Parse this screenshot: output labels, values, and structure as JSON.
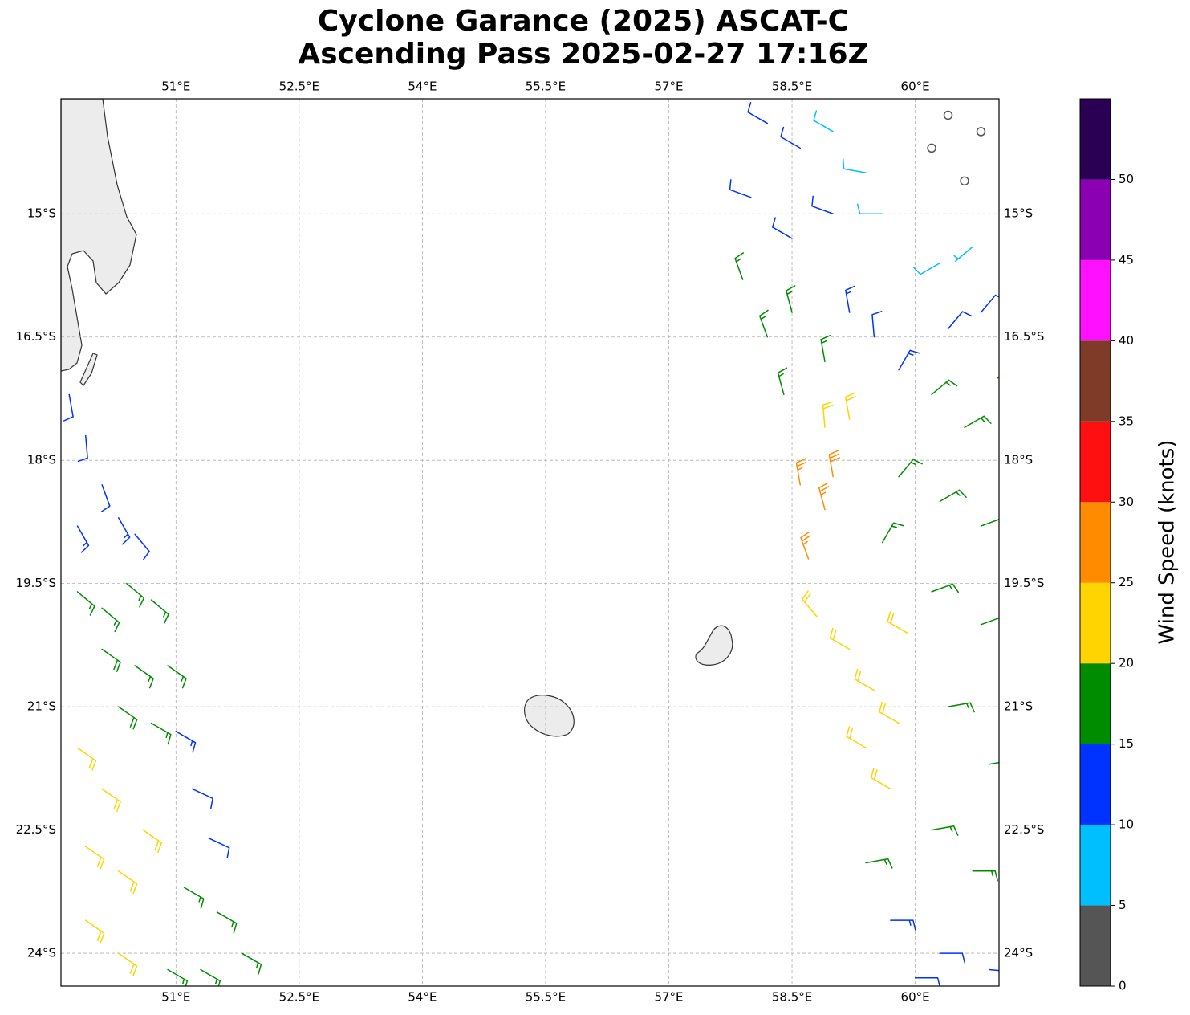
{
  "chart_data": {
    "type": "barb",
    "title": [
      "Cyclone Garance (2025) ASCAT-C",
      "Ascending Pass 2025-02-27 17:16Z"
    ],
    "xlim": [
      49.6,
      61.02
    ],
    "ylim": [
      -24.4,
      -13.6
    ],
    "xticks": [
      {
        "value": 51,
        "label": "51°E"
      },
      {
        "value": 52.5,
        "label": "52.5°E"
      },
      {
        "value": 54,
        "label": "54°E"
      },
      {
        "value": 55.5,
        "label": "55.5°E"
      },
      {
        "value": 57,
        "label": "57°E"
      },
      {
        "value": 58.5,
        "label": "58.5°E"
      },
      {
        "value": 60,
        "label": "60°E"
      }
    ],
    "yticks": [
      {
        "value": -15,
        "label": "15°S"
      },
      {
        "value": -16.5,
        "label": "16.5°S"
      },
      {
        "value": -18,
        "label": "18°S"
      },
      {
        "value": -19.5,
        "label": "19.5°S"
      },
      {
        "value": -21,
        "label": "21°S"
      },
      {
        "value": -22.5,
        "label": "22.5°S"
      },
      {
        "value": -24,
        "label": "24°S"
      }
    ],
    "grid": true,
    "colorbar": {
      "label": "Wind Speed (knots)",
      "levels": [
        0,
        5,
        10,
        15,
        20,
        25,
        30,
        35,
        40,
        45,
        50,
        55
      ],
      "colors": [
        "#555555",
        "#00bfff",
        "#0033ff",
        "#008c00",
        "#ffd400",
        "#ff8c00",
        "#ff1010",
        "#7f3a28",
        "#ff10ff",
        "#8c00b4",
        "#2a0055"
      ],
      "ticks": [
        0,
        5,
        10,
        15,
        20,
        25,
        30,
        35,
        40,
        45,
        50
      ]
    },
    "barbs": {
      "lon": [
        49.7,
        49.9,
        50.1,
        50.3,
        50.5,
        49.8,
        49.8,
        50.1,
        50.4,
        50.7,
        50.1,
        50.5,
        50.9,
        50.3,
        50.7,
        51.0,
        51.2,
        51.4,
        51.1,
        51.5,
        51.8,
        50.9,
        51.3,
        49.8,
        50.1,
        49.9,
        50.3,
        49.9,
        50.3,
        50.6,
        58.2,
        58.6,
        59.0,
        59.4,
        58.0,
        58.5,
        59.0,
        59.6,
        60.3,
        60.7,
        60.2,
        60.6,
        60.8,
        60.4,
        57.9,
        58.2,
        58.5,
        58.4,
        58.9,
        59.2,
        59.5,
        58.9,
        59.2,
        58.6,
        58.9,
        59.0,
        58.7,
        58.8,
        59.2,
        59.5,
        59.9,
        59.4,
        59.7,
        59.8,
        59.8,
        60.2,
        60.6,
        61.0,
        59.8,
        60.3,
        60.8,
        59.6,
        60.2,
        60.8,
        60.4,
        60.9,
        60.2,
        59.4,
        60.7,
        59.7,
        60.3,
        60.9,
        60.0,
        60.8,
        60.4
      ],
      "lat": [
        -17.2,
        -17.7,
        -18.3,
        -18.7,
        -18.9,
        -18.8,
        -19.6,
        -19.8,
        -19.5,
        -19.7,
        -20.3,
        -20.5,
        -20.5,
        -21.0,
        -21.2,
        -21.3,
        -22.0,
        -22.6,
        -23.2,
        -23.5,
        -24.0,
        -24.2,
        -24.2,
        -21.5,
        -22.0,
        -22.7,
        -23.0,
        -23.6,
        -24.0,
        -22.5,
        -13.9,
        -14.2,
        -14.0,
        -14.5,
        -14.8,
        -15.3,
        -15.0,
        -15.0,
        -15.6,
        -15.4,
        -14.2,
        -14.6,
        -14.0,
        -13.8,
        -15.8,
        -16.5,
        -16.2,
        -17.2,
        -16.8,
        -16.2,
        -16.5,
        -17.6,
        -17.5,
        -18.3,
        -18.6,
        -18.2,
        -19.2,
        -19.9,
        -20.3,
        -20.8,
        -20.1,
        -21.5,
        -22.0,
        -21.2,
        -16.9,
        -17.2,
        -17.6,
        -17.0,
        -18.2,
        -18.5,
        -18.8,
        -19.0,
        -19.6,
        -20.0,
        -21.0,
        -21.7,
        -22.5,
        -22.9,
        -23.0,
        -23.6,
        -24.0,
        -24.2,
        -24.3,
        -16.2,
        -16.4
      ],
      "speed": [
        12,
        12,
        12,
        13,
        12,
        14,
        17,
        17,
        17,
        17,
        18,
        17,
        17,
        18,
        17,
        13,
        12,
        12,
        17,
        17,
        16,
        16,
        17,
        21,
        22,
        22,
        21,
        22,
        21,
        21,
        12,
        11,
        8,
        8,
        12,
        12,
        12,
        8,
        8,
        7,
        3,
        3,
        1,
        1,
        17,
        17,
        17,
        16,
        17,
        13,
        12,
        22,
        22,
        26,
        27,
        28,
        27,
        22,
        22,
        22,
        22,
        21,
        21,
        21,
        14,
        17,
        17,
        17,
        17,
        17,
        17,
        17,
        17,
        17,
        17,
        16,
        17,
        17,
        17,
        13,
        12,
        12,
        12,
        12,
        12
      ],
      "direction": [
        170,
        175,
        160,
        150,
        140,
        150,
        130,
        130,
        130,
        130,
        125,
        125,
        125,
        125,
        120,
        120,
        115,
        115,
        120,
        120,
        120,
        120,
        120,
        125,
        125,
        125,
        125,
        125,
        125,
        125,
        300,
        300,
        300,
        280,
        290,
        300,
        290,
        270,
        240,
        230,
        200,
        220,
        0,
        0,
        340,
        340,
        345,
        345,
        350,
        350,
        355,
        355,
        350,
        350,
        345,
        350,
        340,
        320,
        300,
        300,
        300,
        300,
        300,
        300,
        30,
        50,
        60,
        60,
        40,
        60,
        70,
        30,
        70,
        70,
        80,
        80,
        80,
        80,
        90,
        90,
        90,
        95,
        90,
        40,
        40
      ]
    }
  }
}
